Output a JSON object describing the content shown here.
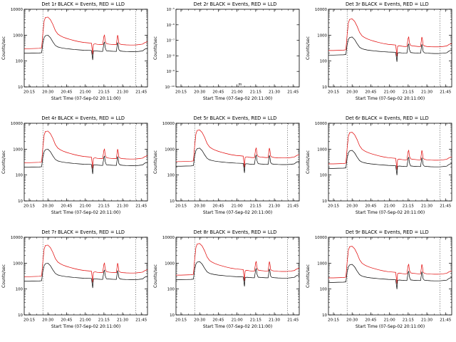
{
  "page": {
    "background": "#ffffff"
  },
  "chart_data": {
    "type": "line",
    "grid": {
      "rows": 3,
      "cols": 3
    },
    "title_suffix": "BLACK = Events, RED = LLD",
    "xlabel": "Start Time (07-Sep-02 20:11:00)",
    "ylabel": "Counts/sec",
    "x_ticks": [
      "20:15",
      "20:30",
      "20:45",
      "21:00",
      "21:15",
      "21:30",
      "21:45"
    ],
    "x_tick_minutes": [
      4,
      19,
      34,
      49,
      64,
      79,
      94
    ],
    "x_range_minutes": [
      0,
      99
    ],
    "ylim": [
      10,
      10000
    ],
    "y_ticks": {
      "labels": [
        "10000",
        "1000",
        "100",
        "10"
      ],
      "values": [
        10000,
        1000,
        100,
        10
      ]
    },
    "dotted_lines_minutes": [
      15,
      89.5
    ],
    "series_colors": {
      "events": "#000000",
      "lld": "#e00000"
    },
    "legend": [
      {
        "name": "Events",
        "color": "#000000"
      },
      {
        "name": "LLD",
        "color": "#e00000"
      }
    ],
    "time_minutes": [
      0,
      4,
      8,
      12,
      14,
      15,
      16,
      17,
      19,
      21,
      23,
      25,
      27,
      29,
      31,
      34,
      37,
      40,
      44,
      48,
      52,
      54,
      55,
      55.5,
      56,
      57,
      59,
      61,
      63,
      64,
      64.5,
      65,
      66,
      68,
      70,
      72,
      74,
      75,
      75.5,
      76,
      77,
      79,
      82,
      85,
      88,
      90,
      92,
      95,
      97,
      99
    ],
    "lld_values": [
      300,
      300,
      305,
      310,
      320,
      1200,
      3500,
      4800,
      5000,
      4000,
      2600,
      1500,
      1100,
      950,
      850,
      750,
      680,
      620,
      560,
      520,
      500,
      490,
      180,
      430,
      450,
      460,
      440,
      430,
      430,
      900,
      1000,
      600,
      470,
      450,
      440,
      430,
      430,
      1000,
      800,
      500,
      450,
      430,
      420,
      415,
      415,
      420,
      430,
      450,
      520,
      560
    ],
    "events_values": [
      200,
      200,
      203,
      205,
      210,
      500,
      800,
      950,
      1000,
      800,
      550,
      400,
      350,
      330,
      315,
      300,
      290,
      280,
      270,
      262,
      258,
      255,
      110,
      240,
      245,
      248,
      242,
      238,
      236,
      480,
      550,
      330,
      250,
      244,
      240,
      237,
      236,
      520,
      430,
      280,
      245,
      238,
      233,
      230,
      230,
      232,
      236,
      245,
      290,
      310
    ],
    "panels": [
      {
        "id": "det-1r",
        "title": "Det 1r BLACK = Events, RED = LLD",
        "empty": false,
        "scale": 1.0
      },
      {
        "id": "det-2r",
        "title": "Det 2r BLACK = Events, RED = LLD",
        "empty": true,
        "empty_y_labels": [
          "10⁻⁵",
          "10⁻⁶",
          "10⁻⁷",
          "10⁻⁸",
          "10⁻⁹",
          "10⁻¹⁰"
        ],
        "artifact": "m"
      },
      {
        "id": "det-3r",
        "title": "Det 3r BLACK = Events, RED = LLD",
        "empty": false,
        "scale": 0.85
      },
      {
        "id": "det-4r",
        "title": "Det 4r BLACK = Events, RED = LLD",
        "empty": false,
        "scale": 1.0
      },
      {
        "id": "det-5r",
        "title": "Det 5r BLACK = Events, RED = LLD",
        "empty": false,
        "scale": 1.1
      },
      {
        "id": "det-6r",
        "title": "Det 6r BLACK = Events, RED = LLD",
        "empty": false,
        "scale": 0.9
      },
      {
        "id": "det-7r",
        "title": "Det 7r BLACK = Events, RED = LLD",
        "empty": false,
        "scale": 1.0
      },
      {
        "id": "det-8r",
        "title": "Det 8r BLACK = Events, RED = LLD",
        "empty": false,
        "scale": 1.15
      },
      {
        "id": "det-9r",
        "title": "Det 9r BLACK = Events, RED = LLD",
        "empty": false,
        "scale": 0.9
      }
    ]
  }
}
